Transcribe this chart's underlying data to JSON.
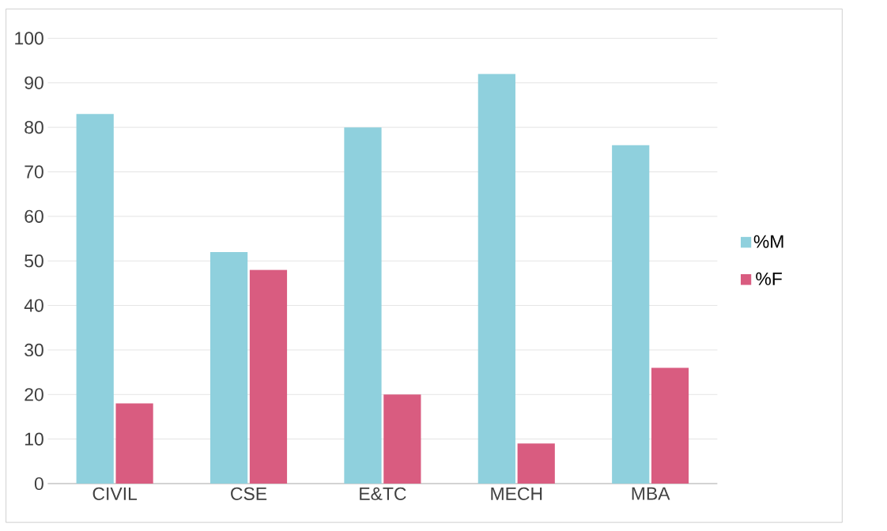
{
  "chart_data": {
    "type": "bar",
    "categories": [
      "CIVIL",
      "CSE",
      "E&TC",
      "MECH",
      "MBA"
    ],
    "series": [
      {
        "name": "%M",
        "color": "#8fd0dd",
        "values": [
          83,
          52,
          80,
          92,
          76
        ]
      },
      {
        "name": "%F",
        "color": "#d95c80",
        "values": [
          18,
          48,
          20,
          9,
          26
        ]
      }
    ],
    "ylim": [
      0,
      100
    ],
    "yticks": [
      0,
      10,
      20,
      30,
      40,
      50,
      60,
      70,
      80,
      90,
      100
    ],
    "grid": "y",
    "legend": "right"
  }
}
